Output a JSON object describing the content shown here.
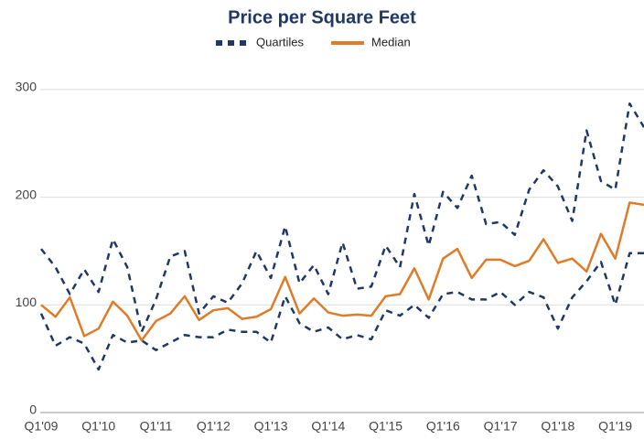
{
  "chart_data": {
    "type": "line",
    "title": "Price per Square Feet",
    "categories": [
      "Q1'09",
      null,
      null,
      null,
      "Q1'10",
      null,
      null,
      null,
      "Q1'11",
      null,
      null,
      null,
      "Q1'12",
      null,
      null,
      null,
      "Q1'13",
      null,
      null,
      null,
      "Q1'14",
      null,
      null,
      null,
      "Q1'15",
      null,
      null,
      null,
      "Q1'16",
      null,
      null,
      null,
      "Q1'17",
      null,
      null,
      null,
      "Q1'18",
      null,
      null,
      null,
      "Q1'19",
      null,
      null
    ],
    "series": [
      {
        "name": "Quartiles",
        "color": "#1f3864",
        "dashed": true,
        "values": [
          152,
          135,
          110,
          133,
          112,
          161,
          135,
          75,
          105,
          145,
          150,
          92,
          108,
          102,
          120,
          150,
          125,
          173,
          120,
          137,
          110,
          158,
          115,
          117,
          155,
          135,
          203,
          155,
          205,
          190,
          220,
          175,
          177,
          165,
          207,
          225,
          210,
          178,
          262,
          215,
          207,
          287,
          265
        ],
        "lower": [
          92,
          62,
          70,
          64,
          40,
          72,
          65,
          67,
          58,
          65,
          72,
          70,
          70,
          77,
          75,
          75,
          65,
          108,
          83,
          75,
          79,
          68,
          72,
          68,
          95,
          90,
          100,
          88,
          110,
          112,
          105,
          105,
          112,
          100,
          112,
          107,
          78,
          107,
          122,
          140,
          100,
          148,
          148
        ]
      },
      {
        "name": "Median",
        "color": "#e07b28",
        "dashed": false,
        "values": [
          100,
          89,
          107,
          71,
          78,
          103,
          90,
          67,
          85,
          92,
          108,
          86,
          95,
          97,
          87,
          89,
          96,
          126,
          92,
          106,
          93,
          90,
          91,
          90,
          108,
          110,
          134,
          105,
          143,
          152,
          125,
          142,
          142,
          136,
          141,
          161,
          139,
          143,
          131,
          166,
          143,
          195,
          193
        ]
      }
    ],
    "ylim": [
      0,
      320
    ],
    "yticks": [
      0,
      100,
      200,
      300
    ],
    "grid": true,
    "legend": "top"
  }
}
